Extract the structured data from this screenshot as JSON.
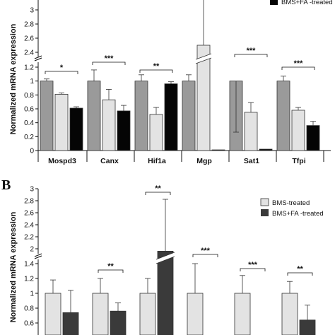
{
  "chart_data": [
    {
      "type": "bar",
      "ylabel": "Normalized mRNA expression",
      "categories": [
        "Mospd3",
        "Canx",
        "Hif1a",
        "Mgp",
        "Sat1",
        "Tfpi"
      ],
      "y_ticks_lower": [
        "0",
        "0.2",
        "0.4",
        "0.6",
        "0.8",
        "1",
        "1.2"
      ],
      "y_ticks_upper": [
        "2.4",
        "2.6",
        "2.8",
        "3"
      ],
      "legend": [
        "BMS+FA -treated"
      ],
      "colors": [
        "#9a9a9a",
        "#e3e3e3",
        "#050505"
      ],
      "axis_break": true,
      "series": [
        {
          "values": [
            1.0,
            1.0,
            1.0,
            1.0,
            1.0,
            1.0
          ],
          "errors": [
            0.03,
            0.16,
            0.09,
            0.09,
            0.27,
            0.07
          ]
        },
        {
          "values": [
            0.81,
            0.73,
            0.52,
            2.5,
            0.55,
            0.58
          ],
          "errors": [
            0.02,
            0.15,
            0.1,
            0.8,
            0.14,
            0.04
          ]
        },
        {
          "name": "BMS+FA -treated",
          "values": [
            0.61,
            0.57,
            0.96,
            0.01,
            0.02,
            0.36
          ],
          "errors": [
            0.02,
            0.08,
            0.03,
            0.0,
            0.0,
            0.06
          ]
        }
      ],
      "significance": [
        "*",
        "***",
        "**",
        "",
        "***",
        "***"
      ]
    },
    {
      "type": "bar",
      "panel_label": "B",
      "ylabel": "Normalized mRNA expression",
      "y_ticks_lower": [
        "0.6",
        "0.8",
        "1",
        "1.2",
        "1.4"
      ],
      "y_ticks_upper": [
        "2",
        "2.2",
        "2.4",
        "2.6",
        "2.8",
        "3"
      ],
      "legend": [
        "BMS-treated",
        "BMS+FA -treated"
      ],
      "colors": [
        "#e3e3e3",
        "#3a3a3a"
      ],
      "axis_break": true,
      "series": [
        {
          "name": "BMS-treated",
          "values": [
            1.0,
            1.0,
            1.0,
            1.0,
            1.0,
            1.0
          ],
          "errors": [
            0.18,
            0.2,
            0.2,
            0.4,
            0.24,
            0.16
          ]
        },
        {
          "name": "BMS+FA -treated",
          "values": [
            0.74,
            0.76,
            1.96,
            0.0,
            0.0,
            0.64
          ],
          "errors": [
            0.3,
            0.11,
            0.9,
            0.0,
            0.0,
            0.2
          ]
        }
      ],
      "significance": [
        "",
        "**",
        "**",
        "***",
        "***",
        "**"
      ]
    }
  ]
}
